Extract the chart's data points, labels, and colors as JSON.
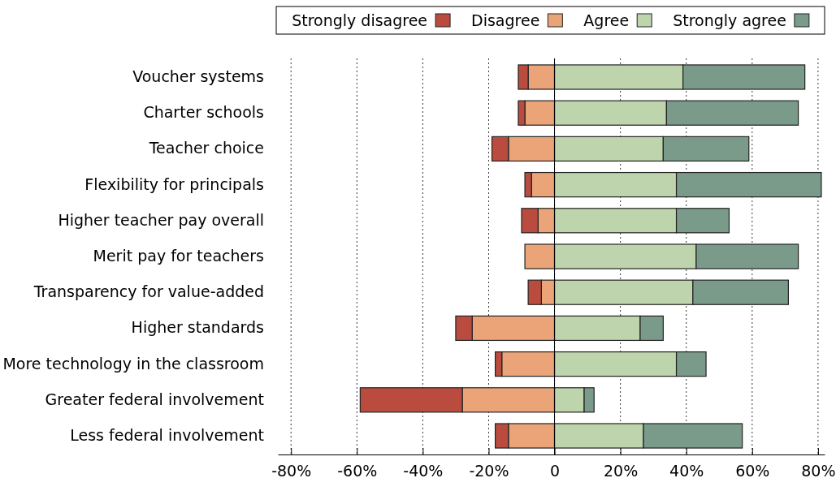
{
  "chart_data": {
    "type": "bar",
    "orientation": "horizontal",
    "stacked": true,
    "categories": [
      "Voucher systems",
      "Charter schools",
      "Teacher choice",
      "Flexibility for principals",
      "Higher teacher pay overall",
      "Merit pay for teachers",
      "Transparency for value-added",
      "Higher standards",
      "More technology in the classroom",
      "Greater federal involvement",
      "Less federal involvement"
    ],
    "series": [
      {
        "name": "Disagree",
        "color": "#eba378",
        "values": [
          -8,
          -9,
          -14,
          -7,
          -5,
          -9,
          -4,
          -25,
          -16,
          -28,
          -14
        ]
      },
      {
        "name": "Strongly disagree",
        "color": "#b94c3e",
        "values": [
          -3,
          -2,
          -5,
          -2,
          -5,
          0,
          -4,
          -5,
          -2,
          -31,
          -4
        ]
      },
      {
        "name": "Agree",
        "color": "#bdd4ad",
        "values": [
          39,
          34,
          33,
          37,
          37,
          43,
          42,
          26,
          37,
          9,
          27
        ]
      },
      {
        "name": "Strongly agree",
        "color": "#7a9b89",
        "values": [
          37,
          40,
          26,
          44,
          16,
          31,
          29,
          7,
          9,
          3,
          30
        ]
      }
    ],
    "xlim": [
      -84,
      82
    ],
    "xticks": [
      {
        "value": -80,
        "label": "-80%"
      },
      {
        "value": -60,
        "label": "-60%"
      },
      {
        "value": -40,
        "label": "-40%"
      },
      {
        "value": -20,
        "label": "-20%"
      },
      0,
      {
        "value": 20,
        "label": "20%"
      },
      {
        "value": 40,
        "label": "40%"
      },
      {
        "value": 60,
        "label": "60%"
      },
      {
        "value": 80,
        "label": "80%"
      }
    ],
    "grid": "x",
    "legend": "top"
  }
}
